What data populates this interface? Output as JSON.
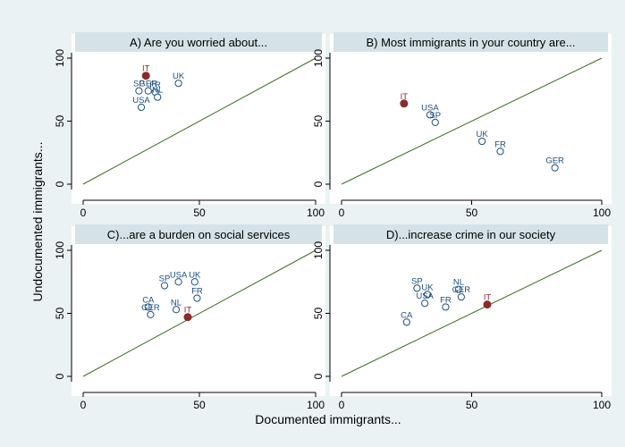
{
  "figure": {
    "ylabel": "Undocumented immigrants...",
    "xlabel": "Documented immigrants..."
  },
  "colors": {
    "figure_bg": "#eaf2f3",
    "plot_bg": "#ffffff",
    "strip_bg": "#d5e3e8",
    "diagonal": "#3f6b22",
    "point_default": "#1a4e7f",
    "point_highlight": "#8b2a2a",
    "label_default": "#1a4e7f",
    "label_highlight": "#8b2a2a"
  },
  "chart_data": [
    {
      "type": "scatter",
      "title": "A) Are you worried about...",
      "xlim": [
        0,
        100
      ],
      "ylim": [
        0,
        100
      ],
      "xticks": [
        "0",
        "50",
        "100"
      ],
      "yticks": [
        "0",
        "50",
        "100"
      ],
      "reference_line": "45-degree diagonal",
      "points": [
        {
          "label": "IT",
          "x": 27,
          "y": 86,
          "highlight": true
        },
        {
          "label": "UK",
          "x": 41,
          "y": 80,
          "highlight": false
        },
        {
          "label": "SP",
          "x": 24,
          "y": 74,
          "highlight": false
        },
        {
          "label": "GER",
          "x": 28,
          "y": 74,
          "highlight": false
        },
        {
          "label": "FR",
          "x": 31,
          "y": 73,
          "highlight": false
        },
        {
          "label": "NL",
          "x": 32,
          "y": 69,
          "highlight": false
        },
        {
          "label": "USA",
          "x": 25,
          "y": 61,
          "highlight": false
        }
      ]
    },
    {
      "type": "scatter",
      "title": "B) Most immigrants in your country are...",
      "xlim": [
        0,
        100
      ],
      "ylim": [
        0,
        100
      ],
      "xticks": [
        "0",
        "50",
        "100"
      ],
      "yticks": [
        "0",
        "50",
        "100"
      ],
      "reference_line": "45-degree diagonal",
      "points": [
        {
          "label": "IT",
          "x": 24,
          "y": 64,
          "highlight": true
        },
        {
          "label": "USA",
          "x": 34,
          "y": 55,
          "highlight": false
        },
        {
          "label": "SP",
          "x": 36,
          "y": 49,
          "highlight": false
        },
        {
          "label": "UK",
          "x": 54,
          "y": 34,
          "highlight": false
        },
        {
          "label": "FR",
          "x": 61,
          "y": 26,
          "highlight": false
        },
        {
          "label": "GER",
          "x": 82,
          "y": 13,
          "highlight": false
        }
      ]
    },
    {
      "type": "scatter",
      "title": "C)...are a burden on social services",
      "xlim": [
        0,
        100
      ],
      "ylim": [
        0,
        100
      ],
      "xticks": [
        "0",
        "50",
        "100"
      ],
      "yticks": [
        "0",
        "50",
        "100"
      ],
      "reference_line": "45-degree diagonal",
      "points": [
        {
          "label": "SP",
          "x": 35,
          "y": 72,
          "highlight": false
        },
        {
          "label": "USA",
          "x": 41,
          "y": 75,
          "highlight": false
        },
        {
          "label": "UK",
          "x": 48,
          "y": 75,
          "highlight": false
        },
        {
          "label": "FR",
          "x": 49,
          "y": 62,
          "highlight": false
        },
        {
          "label": "CA",
          "x": 28,
          "y": 55,
          "highlight": false
        },
        {
          "label": "GER",
          "x": 29,
          "y": 49,
          "highlight": false
        },
        {
          "label": "NL",
          "x": 40,
          "y": 53,
          "highlight": false
        },
        {
          "label": "IT",
          "x": 45,
          "y": 47,
          "highlight": true
        }
      ]
    },
    {
      "type": "scatter",
      "title": "D)...increase crime in our society",
      "xlim": [
        0,
        100
      ],
      "ylim": [
        0,
        100
      ],
      "xticks": [
        "0",
        "50",
        "100"
      ],
      "yticks": [
        "0",
        "50",
        "100"
      ],
      "reference_line": "45-degree diagonal",
      "points": [
        {
          "label": "SP",
          "x": 29,
          "y": 70,
          "highlight": false
        },
        {
          "label": "UK",
          "x": 33,
          "y": 65,
          "highlight": false
        },
        {
          "label": "USA",
          "x": 32,
          "y": 58,
          "highlight": false
        },
        {
          "label": "NL",
          "x": 45,
          "y": 69,
          "highlight": false
        },
        {
          "label": "GER",
          "x": 46,
          "y": 63,
          "highlight": false
        },
        {
          "label": "FR",
          "x": 40,
          "y": 55,
          "highlight": false
        },
        {
          "label": "CA",
          "x": 25,
          "y": 43,
          "highlight": false
        },
        {
          "label": "IT",
          "x": 56,
          "y": 57,
          "highlight": true
        }
      ]
    }
  ]
}
